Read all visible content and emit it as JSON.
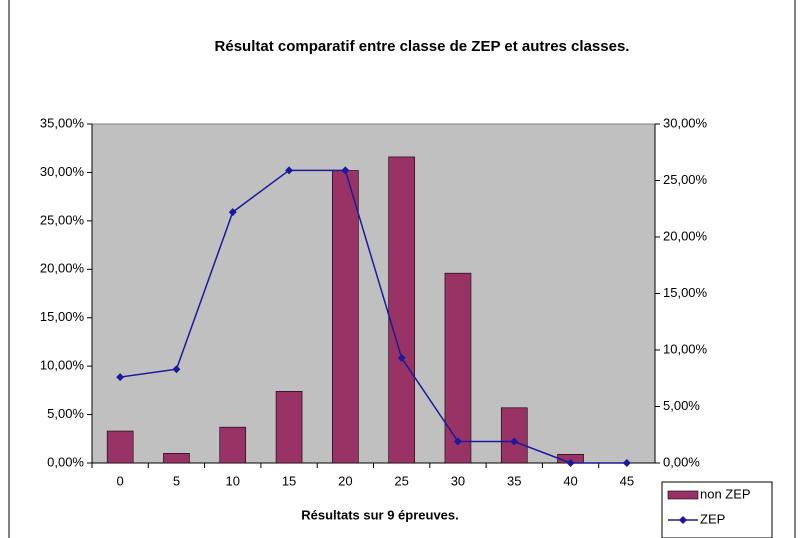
{
  "chart_data": {
    "type": "bar_line",
    "title": "Résultat comparatif entre classe de ZEP et autres classes.",
    "x_label": "Résultats sur 9 épreuves.",
    "categories": [
      "0",
      "5",
      "10",
      "15",
      "20",
      "25",
      "30",
      "35",
      "40",
      "45"
    ],
    "series": [
      {
        "name": "non ZEP",
        "type": "bar",
        "color": "#993366",
        "axis": "y",
        "values": [
          3.3,
          1.0,
          3.7,
          7.4,
          30.2,
          31.6,
          19.6,
          5.7,
          0.9,
          0
        ]
      },
      {
        "name": "ZEP",
        "type": "line",
        "color": "#1a1a9a",
        "axis": "y2",
        "values": [
          7.6,
          8.3,
          22.2,
          25.9,
          25.9,
          9.3,
          1.9,
          1.9,
          0,
          0
        ]
      }
    ],
    "ylim": [
      0,
      35
    ],
    "yticks": [
      {
        "value": 0,
        "label": "0,00%"
      },
      {
        "value": 5,
        "label": "5,00%"
      },
      {
        "value": 10,
        "label": "10,00%"
      },
      {
        "value": 15,
        "label": "15,00%"
      },
      {
        "value": 20,
        "label": "20,00%"
      },
      {
        "value": 25,
        "label": "25,00%"
      },
      {
        "value": 30,
        "label": "30,00%"
      },
      {
        "value": 35,
        "label": "35,00%"
      }
    ],
    "y2lim": [
      0,
      30
    ],
    "y2ticks": [
      {
        "value": 0,
        "label": "0,00%"
      },
      {
        "value": 5,
        "label": "5,00%"
      },
      {
        "value": 10,
        "label": "10,00%"
      },
      {
        "value": 15,
        "label": "15,00%"
      },
      {
        "value": 20,
        "label": "20,00%"
      },
      {
        "value": 25,
        "label": "25,00%"
      },
      {
        "value": 30,
        "label": "30,00%"
      }
    ],
    "plot_background": "#c0c0c0"
  }
}
